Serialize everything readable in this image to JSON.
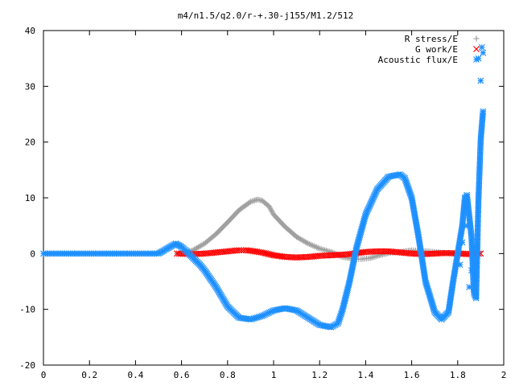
{
  "chart_data": {
    "type": "scatter",
    "title": "m4/n1.5/q2.0/r-+.30-j155/M1.2/512",
    "xlabel": "",
    "ylabel": "",
    "xlim": [
      0,
      2
    ],
    "ylim": [
      -20,
      40
    ],
    "x_ticks": [
      0,
      0.2,
      0.4,
      0.6,
      0.8,
      1,
      1.2,
      1.4,
      1.6,
      1.8,
      2
    ],
    "x_tick_labels": [
      "0",
      "0.2",
      "0.4",
      "0.6",
      "0.8",
      "1",
      "1.2",
      "1.4",
      "1.6",
      "1.8",
      "2"
    ],
    "y_ticks": [
      -20,
      -10,
      0,
      10,
      20,
      30,
      40
    ],
    "y_tick_labels": [
      "-20",
      "-10",
      "0",
      "10",
      "20",
      "30",
      "40"
    ],
    "grid": false,
    "legend_position": "top-right",
    "series": [
      {
        "name": "R stress/E",
        "marker": "plus",
        "color": "#a0a0a0",
        "x": [
          0.58,
          0.6,
          0.65,
          0.7,
          0.75,
          0.8,
          0.85,
          0.9,
          0.93,
          0.95,
          0.98,
          1.0,
          1.05,
          1.1,
          1.15,
          1.2,
          1.25,
          1.3,
          1.35,
          1.38,
          1.42,
          1.46,
          1.5,
          1.55,
          1.6,
          1.65,
          1.7,
          1.75,
          1.8,
          1.85
        ],
        "y": [
          0.0,
          0.1,
          0.6,
          1.8,
          3.5,
          5.6,
          7.8,
          9.3,
          9.7,
          9.5,
          8.5,
          7.0,
          4.8,
          3.0,
          1.8,
          0.9,
          0.3,
          -0.6,
          -1.0,
          -1.0,
          -0.8,
          -0.3,
          0.1,
          0.3,
          0.6,
          0.5,
          0.3,
          0.1,
          0.1,
          0.0
        ]
      },
      {
        "name": "G work/E",
        "marker": "cross",
        "color": "#ff0000",
        "x": [
          0.58,
          0.65,
          0.7,
          0.75,
          0.8,
          0.85,
          0.88,
          0.92,
          0.96,
          1.0,
          1.05,
          1.1,
          1.15,
          1.2,
          1.25,
          1.3,
          1.35,
          1.4,
          1.45,
          1.5,
          1.55,
          1.6,
          1.65,
          1.7,
          1.75,
          1.8,
          1.85,
          1.9
        ],
        "y": [
          0.0,
          -0.1,
          0.0,
          0.2,
          0.4,
          0.6,
          0.6,
          0.4,
          0.1,
          -0.3,
          -0.6,
          -0.7,
          -0.6,
          -0.4,
          -0.3,
          -0.2,
          0.0,
          0.3,
          0.4,
          0.4,
          0.2,
          0.0,
          -0.1,
          0.0,
          0.1,
          0.0,
          -0.1,
          0.0
        ]
      },
      {
        "name": "Acoustic flux/E",
        "marker": "star",
        "color": "#1e90ff",
        "x": [
          0.0,
          0.1,
          0.2,
          0.3,
          0.4,
          0.5,
          0.575,
          0.6,
          0.62,
          0.65,
          0.68,
          0.7,
          0.75,
          0.8,
          0.85,
          0.9,
          0.95,
          1.0,
          1.05,
          1.1,
          1.15,
          1.2,
          1.25,
          1.28,
          1.3,
          1.33,
          1.36,
          1.4,
          1.45,
          1.5,
          1.55,
          1.57,
          1.6,
          1.63,
          1.66,
          1.7,
          1.73,
          1.76,
          1.78,
          1.8,
          1.82,
          1.83,
          1.84,
          1.86,
          1.87,
          1.88,
          1.89,
          1.9,
          1.91
        ],
        "y": [
          0.0,
          0.0,
          0.0,
          0.0,
          0.0,
          0.0,
          1.8,
          1.2,
          0.5,
          -0.8,
          -2.0,
          -3.0,
          -6.0,
          -9.5,
          -11.5,
          -11.8,
          -11.2,
          -10.2,
          -9.8,
          -10.2,
          -11.5,
          -12.8,
          -13.2,
          -12.5,
          -10.0,
          -5.0,
          1.0,
          7.0,
          11.5,
          13.8,
          14.2,
          13.5,
          10.0,
          3.0,
          -5.0,
          -10.5,
          -11.8,
          -10.5,
          -5.0,
          0.0,
          5.0,
          9.5,
          10.5,
          3.0,
          -7.0,
          -8.0,
          9.5,
          20.5,
          25.5
        ]
      }
    ],
    "scattered_points": {
      "series": "Acoustic flux/E",
      "x": [
        1.8,
        1.81,
        1.82,
        1.83,
        1.84,
        1.85,
        1.86,
        1.87,
        1.88,
        1.885,
        1.89,
        1.9,
        1.905,
        1.91
      ],
      "y": [
        0.0,
        -2.0,
        2.0,
        10.0,
        5.0,
        -6.0,
        -3.0,
        1.0,
        -7.5,
        1.0,
        35.0,
        31.0,
        37.0,
        36.0
      ]
    }
  }
}
